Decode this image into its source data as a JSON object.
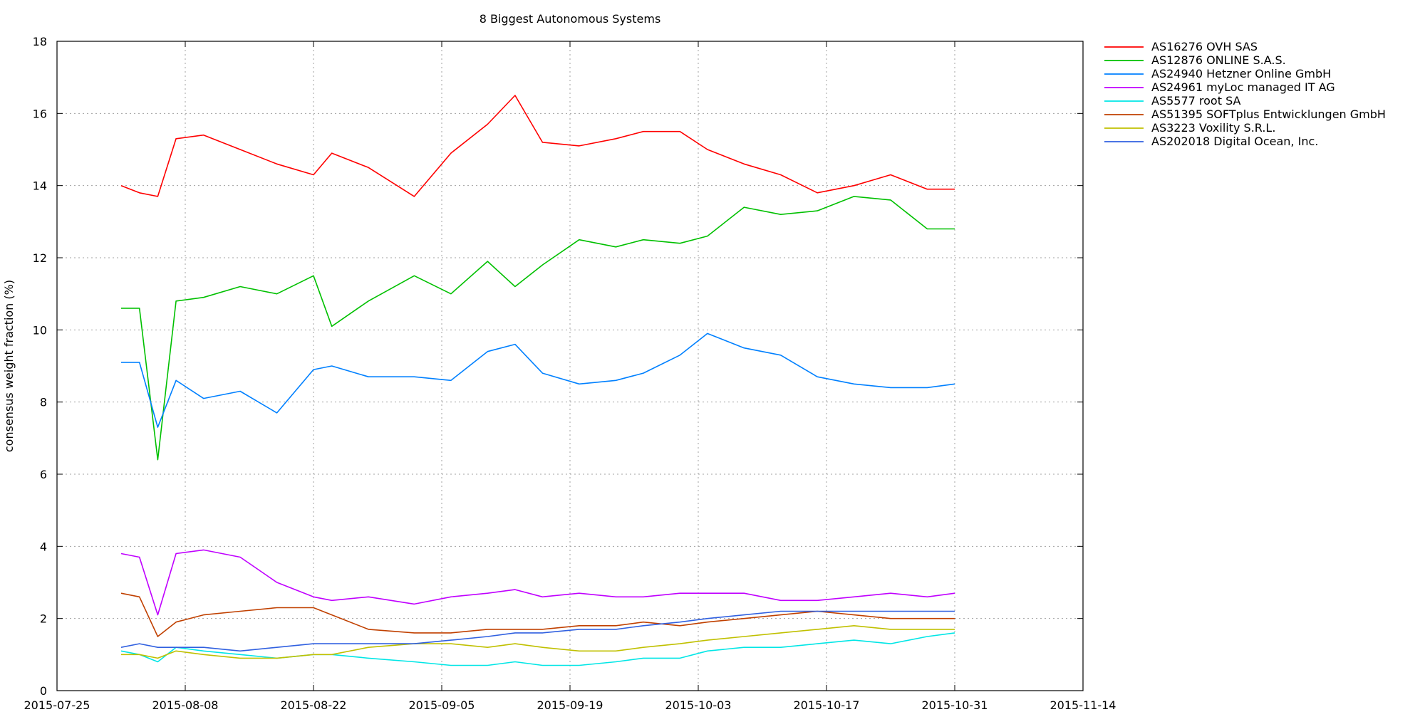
{
  "chart_data": {
    "type": "line",
    "title": "8 Biggest Autonomous Systems",
    "xlabel": "",
    "ylabel": "consensus weight fraction (%)",
    "xlim": [
      "2015-07-25",
      "2015-11-14"
    ],
    "ylim": [
      0,
      18
    ],
    "x_ticks": [
      "2015-07-25",
      "2015-08-08",
      "2015-08-22",
      "2015-09-05",
      "2015-09-19",
      "2015-10-03",
      "2015-10-17",
      "2015-10-31",
      "2015-11-14"
    ],
    "y_ticks": [
      0,
      2,
      4,
      6,
      8,
      10,
      12,
      14,
      16,
      18
    ],
    "grid": true,
    "legend_position": "outside-right",
    "x": [
      "2015-08-01",
      "2015-08-03",
      "2015-08-05",
      "2015-08-07",
      "2015-08-10",
      "2015-08-14",
      "2015-08-18",
      "2015-08-22",
      "2015-08-24",
      "2015-08-28",
      "2015-09-02",
      "2015-09-06",
      "2015-09-10",
      "2015-09-13",
      "2015-09-16",
      "2015-09-20",
      "2015-09-24",
      "2015-09-27",
      "2015-10-01",
      "2015-10-04",
      "2015-10-08",
      "2015-10-12",
      "2015-10-16",
      "2015-10-20",
      "2015-10-24",
      "2015-10-28",
      "2015-10-31"
    ],
    "series": [
      {
        "name": "AS16276 OVH SAS",
        "color": "#ff0000",
        "values": [
          14.0,
          13.8,
          13.7,
          15.3,
          15.4,
          15.0,
          14.6,
          14.3,
          14.9,
          14.5,
          13.7,
          14.9,
          15.7,
          16.5,
          15.2,
          15.1,
          15.3,
          15.5,
          15.5,
          15.0,
          14.6,
          14.3,
          13.8,
          14.0,
          14.3,
          13.9,
          13.9
        ]
      },
      {
        "name": "AS12876 ONLINE S.A.S.",
        "color": "#00c000",
        "values": [
          10.6,
          10.6,
          6.4,
          10.8,
          10.9,
          11.2,
          11.0,
          11.5,
          10.1,
          10.8,
          11.5,
          11.0,
          11.9,
          11.2,
          11.8,
          12.5,
          12.3,
          12.5,
          12.4,
          12.6,
          13.4,
          13.2,
          13.3,
          13.7,
          13.6,
          12.8,
          12.8
        ]
      },
      {
        "name": "AS24940 Hetzner Online GmbH",
        "color": "#0080ff",
        "values": [
          9.1,
          9.1,
          7.3,
          8.6,
          8.1,
          8.3,
          7.7,
          8.9,
          9.0,
          8.7,
          8.7,
          8.6,
          9.4,
          9.6,
          8.8,
          8.5,
          8.6,
          8.8,
          9.3,
          9.9,
          9.5,
          9.3,
          8.7,
          8.5,
          8.4,
          8.4,
          8.5
        ]
      },
      {
        "name": "AS24961 myLoc managed IT AG",
        "color": "#c000ff",
        "values": [
          3.8,
          3.7,
          2.1,
          3.8,
          3.9,
          3.7,
          3.0,
          2.6,
          2.5,
          2.6,
          2.4,
          2.6,
          2.7,
          2.8,
          2.6,
          2.7,
          2.6,
          2.6,
          2.7,
          2.7,
          2.7,
          2.5,
          2.5,
          2.6,
          2.7,
          2.6,
          2.7
        ]
      },
      {
        "name": "AS5577 root SA",
        "color": "#00e6e6",
        "values": [
          1.1,
          1.0,
          0.8,
          1.2,
          1.1,
          1.0,
          0.9,
          1.0,
          1.0,
          0.9,
          0.8,
          0.7,
          0.7,
          0.8,
          0.7,
          0.7,
          0.8,
          0.9,
          0.9,
          1.1,
          1.2,
          1.2,
          1.3,
          1.4,
          1.3,
          1.5,
          1.6
        ]
      },
      {
        "name": "AS51395 SOFTplus Entwicklungen GmbH",
        "color": "#c04000",
        "values": [
          2.7,
          2.6,
          1.5,
          1.9,
          2.1,
          2.2,
          2.3,
          2.3,
          2.1,
          1.7,
          1.6,
          1.6,
          1.7,
          1.7,
          1.7,
          1.8,
          1.8,
          1.9,
          1.8,
          1.9,
          2.0,
          2.1,
          2.2,
          2.1,
          2.0,
          2.0,
          2.0
        ]
      },
      {
        "name": "AS3223 Voxility S.R.L.",
        "color": "#c0c000",
        "values": [
          1.0,
          1.0,
          0.9,
          1.1,
          1.0,
          0.9,
          0.9,
          1.0,
          1.0,
          1.2,
          1.3,
          1.3,
          1.2,
          1.3,
          1.2,
          1.1,
          1.1,
          1.2,
          1.3,
          1.4,
          1.5,
          1.6,
          1.7,
          1.8,
          1.7,
          1.7,
          1.7
        ]
      },
      {
        "name": "AS202018 Digital Ocean, Inc.",
        "color": "#3060e0",
        "values": [
          1.2,
          1.3,
          1.2,
          1.2,
          1.2,
          1.1,
          1.2,
          1.3,
          1.3,
          1.3,
          1.3,
          1.4,
          1.5,
          1.6,
          1.6,
          1.7,
          1.7,
          1.8,
          1.9,
          2.0,
          2.1,
          2.2,
          2.2,
          2.2,
          2.2,
          2.2,
          2.2
        ]
      }
    ]
  }
}
